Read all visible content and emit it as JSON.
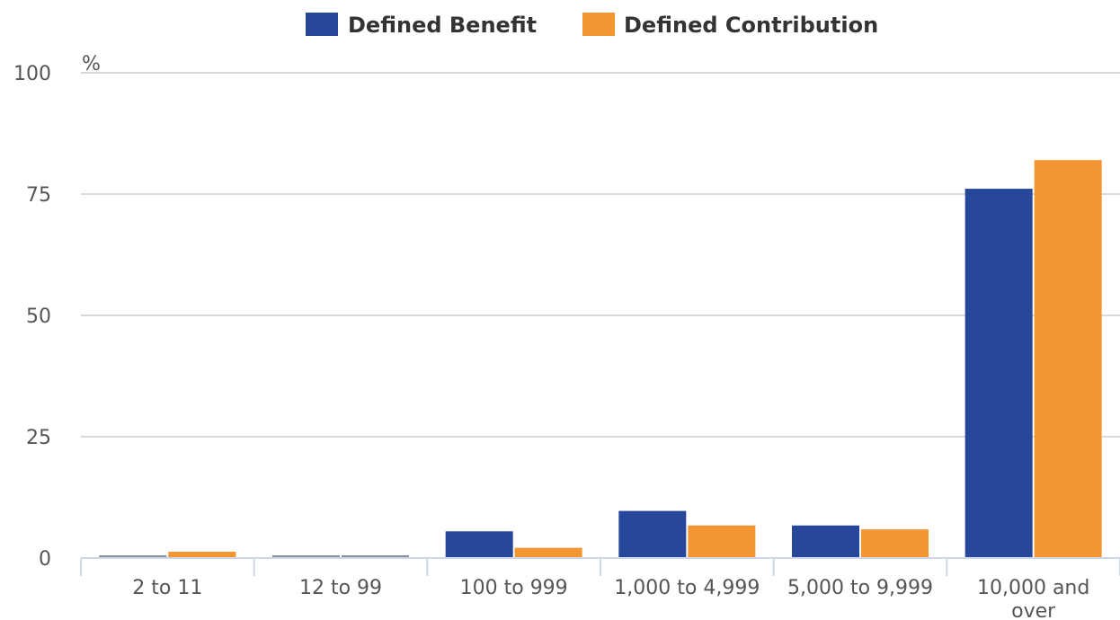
{
  "chart_data": {
    "type": "bar",
    "title": "",
    "xlabel": "",
    "ylabel": "",
    "y_unit": "%",
    "ylim": [
      0,
      100
    ],
    "yticks": [
      "0",
      "25",
      "50",
      "75",
      "100"
    ],
    "categories": [
      "2 to 11",
      "12 to 99",
      "100 to 999",
      "1,000 to 4,999",
      "5,000 to 9,999",
      "10,000 and over"
    ],
    "category_lines": [
      [
        "2 to 11"
      ],
      [
        "12 to 99"
      ],
      [
        "100 to 999"
      ],
      [
        "1,000 to 4,999"
      ],
      [
        "5,000 to 9,999"
      ],
      [
        "10,000 and",
        "over"
      ]
    ],
    "series": [
      {
        "name": "Defined Benefit",
        "color": "#27479a",
        "values": [
          0,
          0,
          5.5,
          9.7,
          6.7,
          76.1
        ]
      },
      {
        "name": "Defined Contribution",
        "color": "#f39632",
        "values": [
          1.3,
          0,
          2.1,
          6.7,
          5.9,
          82.0
        ]
      }
    ],
    "legend_position": "top-center",
    "grid": true
  }
}
